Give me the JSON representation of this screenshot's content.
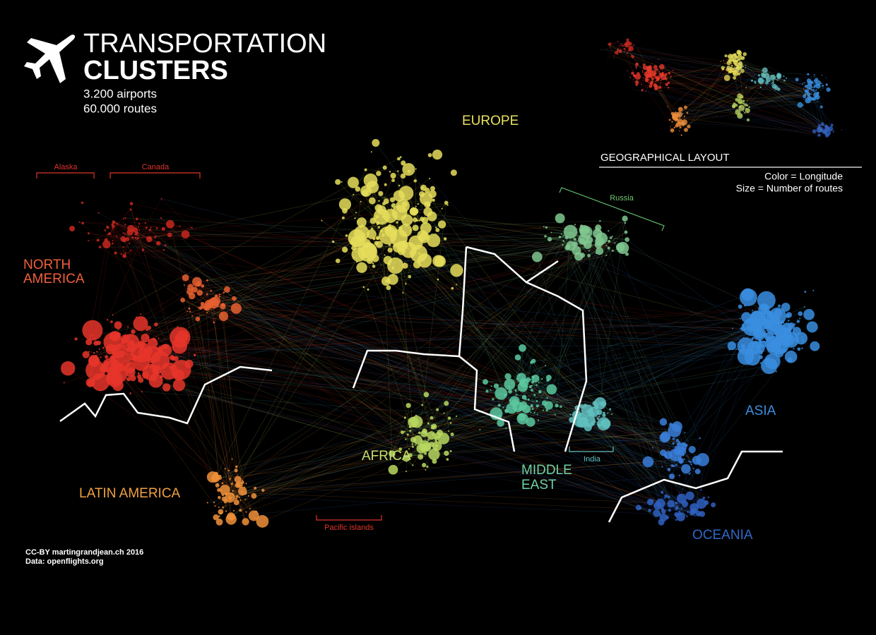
{
  "header": {
    "title": [
      "TRANSPORTATION",
      "CLUSTERS"
    ],
    "stats": [
      "3.200 airports",
      "60.000 routes"
    ]
  },
  "clusters": {
    "north_america": [
      "NORTH",
      "AMERICA"
    ],
    "latin_america": "LATIN AMERICA",
    "europe": "EUROPE",
    "africa": "AFRICA",
    "middle_east": [
      "MIDDLE",
      "EAST"
    ],
    "asia": "ASIA",
    "oceania": "OCEANIA"
  },
  "regions": {
    "alaska": "Alaska",
    "canada": "Canada",
    "russia": "Russia",
    "india": "India",
    "pacific_islands": "Pacific islands"
  },
  "inset": {
    "title": "GEOGRAPHICAL LAYOUT",
    "legend": [
      "Color = Longitude",
      "Size = Number of routes"
    ]
  },
  "credits": [
    "CC-BY martingrandjean.ch 2016",
    "Data: openflights.org"
  ]
}
